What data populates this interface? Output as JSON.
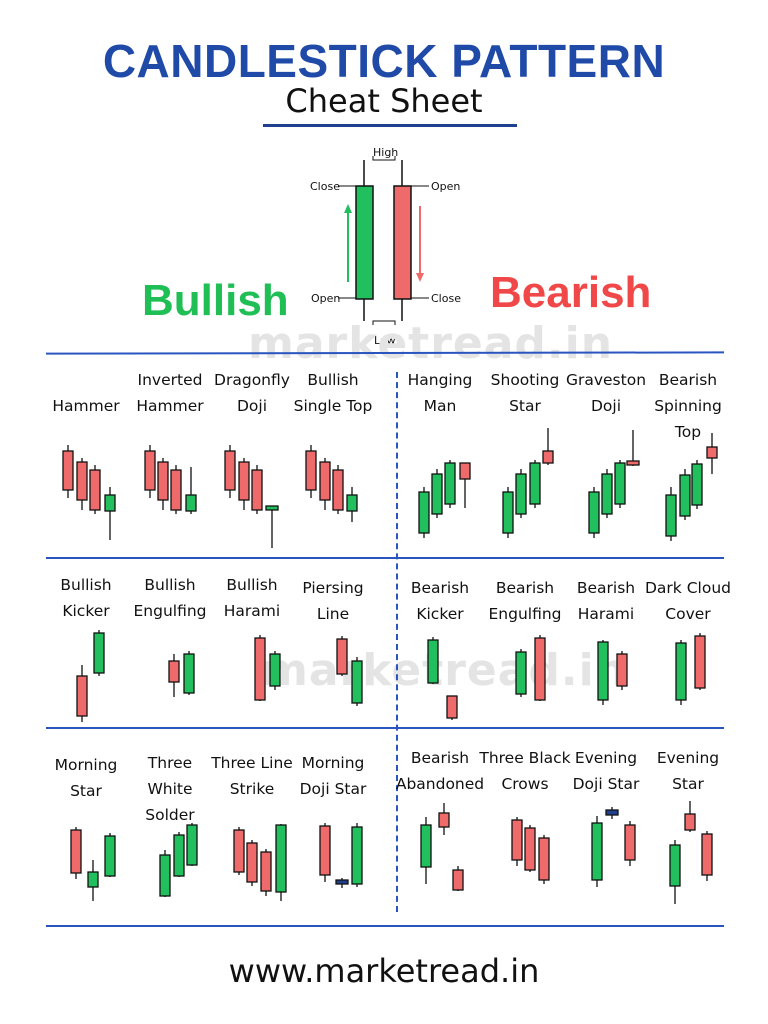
{
  "header": {
    "title": "CANDLESTICK PATTERN",
    "subtitle": "Cheat Sheet"
  },
  "colors": {
    "bullish": "#22bf5e",
    "bearish": "#ef6b6b",
    "navy": "#1f3f8f",
    "divider": "#2a55c0",
    "bullish_label": "#1fbf55",
    "bearish_label": "#f04848"
  },
  "anatomy": {
    "high": "High",
    "low": "Low",
    "bull_close": "Close",
    "bull_open": "Open",
    "bear_open": "Open",
    "bear_close": "Close"
  },
  "sides": {
    "bullish": "Bullish",
    "bearish": "Bearish"
  },
  "watermark": "marketread.in",
  "patterns": {
    "row1": [
      "Hammer",
      "Inverted\nHammer",
      "Dragonfly\nDoji",
      "Bullish\nSingle Top",
      "Hanging\nMan",
      "Shooting\nStar",
      "Graveston\nDoji",
      "Bearish\nSpinning Top"
    ],
    "row2": [
      "Bullish\nKicker",
      "Bullish\nEngulfing",
      "Bullish\nHarami",
      "Piersing\nLine",
      "Bearish\nKicker",
      "Bearish\nEngulfing",
      "Bearish\nHarami",
      "Dark Cloud\nCover"
    ],
    "row3": [
      "Morning\nStar",
      "Three White\nSolder",
      "Three Line\nStrike",
      "Morning\nDoji Star",
      "Bearish\nAbandoned",
      "Three Black\nCrows",
      "Evening\nDoji Star",
      "Evening Star"
    ]
  },
  "footer": "www.marketread.in"
}
